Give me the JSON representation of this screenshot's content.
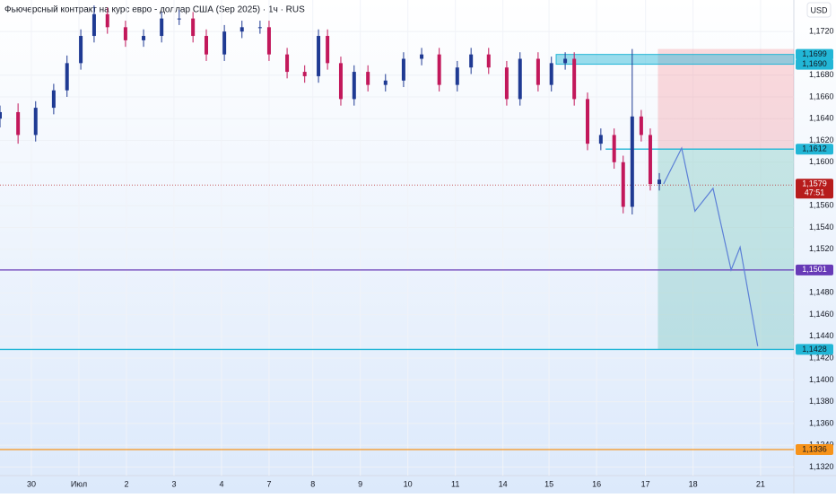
{
  "chart_data": {
    "type": "candlestick",
    "title": "Фьючерсный контракт на курс евро - доллар США (Sep 2025) · 1ч · RUS",
    "currency": "USD",
    "up_color": "#1f3a93",
    "down_color": "#c2185b",
    "grid": true,
    "xlim": [
      -0.66,
      16.04
    ],
    "ylim": [
      1.1308,
      1.1749
    ],
    "xticks": [
      {
        "value": 0,
        "label": "30"
      },
      {
        "value": 1,
        "label": "Июл"
      },
      {
        "value": 2,
        "label": "2"
      },
      {
        "value": 3,
        "label": "3"
      },
      {
        "value": 4,
        "label": "4"
      },
      {
        "value": 5,
        "label": "7"
      },
      {
        "value": 5.92,
        "label": "8"
      },
      {
        "value": 6.92,
        "label": "9"
      },
      {
        "value": 7.92,
        "label": "10"
      },
      {
        "value": 8.92,
        "label": "11"
      },
      {
        "value": 9.92,
        "label": "14"
      },
      {
        "value": 10.89,
        "label": "15"
      },
      {
        "value": 11.89,
        "label": "16"
      },
      {
        "value": 12.92,
        "label": "17"
      },
      {
        "value": 13.92,
        "label": "18"
      },
      {
        "value": 15.34,
        "label": "21"
      }
    ],
    "yticks": [
      {
        "value": 1.132,
        "label": "1,1320"
      },
      {
        "value": 1.134,
        "label": "1,1340"
      },
      {
        "value": 1.136,
        "label": "1,1360"
      },
      {
        "value": 1.138,
        "label": "1,1380"
      },
      {
        "value": 1.14,
        "label": "1,1400"
      },
      {
        "value": 1.142,
        "label": "1,1420"
      },
      {
        "value": 1.144,
        "label": "1,1440"
      },
      {
        "value": 1.146,
        "label": "1,1460"
      },
      {
        "value": 1.148,
        "label": "1,1480"
      },
      {
        "value": 1.152,
        "label": "1,1520"
      },
      {
        "value": 1.154,
        "label": "1,1540"
      },
      {
        "value": 1.156,
        "label": "1,1560"
      },
      {
        "value": 1.16,
        "label": "1,1600"
      },
      {
        "value": 1.162,
        "label": "1,1620"
      },
      {
        "value": 1.164,
        "label": "1,1640"
      },
      {
        "value": 1.166,
        "label": "1,1660"
      },
      {
        "value": 1.168,
        "label": "1,1680"
      },
      {
        "value": 1.172,
        "label": "1,1720"
      }
    ],
    "candles": {
      "x": [
        -0.66,
        -0.28,
        0.09,
        0.47,
        0.75,
        1.04,
        1.32,
        1.6,
        1.98,
        2.36,
        2.74,
        3.11,
        3.4,
        3.68,
        4.06,
        4.43,
        4.81,
        5.0,
        5.38,
        5.75,
        6.04,
        6.23,
        6.51,
        6.79,
        7.08,
        7.45,
        7.83,
        8.21,
        8.58,
        8.96,
        9.25,
        9.62,
        10.0,
        10.28,
        10.66,
        10.94,
        11.23,
        11.42,
        11.7,
        11.98,
        12.26,
        12.45,
        12.64,
        12.83,
        13.02,
        13.21
      ],
      "open": [
        1.164,
        1.1646,
        1.1625,
        1.165,
        1.1666,
        1.1691,
        1.1716,
        1.1736,
        1.1724,
        1.1712,
        1.1716,
        1.1732,
        1.1732,
        1.1716,
        1.1699,
        1.172,
        1.1724,
        1.1724,
        1.1699,
        1.1683,
        1.1679,
        1.1716,
        1.1691,
        1.1658,
        1.1683,
        1.1671,
        1.1675,
        1.1695,
        1.1699,
        1.1671,
        1.1687,
        1.1699,
        1.1687,
        1.1658,
        1.1695,
        1.1671,
        1.1691,
        1.1695,
        1.1658,
        1.1617,
        1.1625,
        1.16,
        1.1559,
        1.1642,
        1.1625,
        1.158
      ],
      "high": [
        1.1652,
        1.1654,
        1.1656,
        1.1672,
        1.1698,
        1.1722,
        1.1744,
        1.1742,
        1.173,
        1.1722,
        1.1738,
        1.174,
        1.1738,
        1.1722,
        1.1726,
        1.173,
        1.173,
        1.173,
        1.1705,
        1.1689,
        1.1722,
        1.1722,
        1.1697,
        1.1689,
        1.1689,
        1.1681,
        1.1701,
        1.1705,
        1.1705,
        1.1693,
        1.1705,
        1.1705,
        1.1693,
        1.1701,
        1.1701,
        1.1697,
        1.1701,
        1.1701,
        1.1664,
        1.1631,
        1.1631,
        1.1606,
        1.1704,
        1.1648,
        1.1631,
        1.159
      ],
      "low": [
        1.1632,
        1.1617,
        1.1619,
        1.1644,
        1.166,
        1.1685,
        1.171,
        1.1718,
        1.1706,
        1.1706,
        1.171,
        1.1726,
        1.171,
        1.1693,
        1.1693,
        1.1714,
        1.1718,
        1.1693,
        1.1677,
        1.1673,
        1.1673,
        1.1685,
        1.1652,
        1.1652,
        1.1665,
        1.1665,
        1.1669,
        1.1689,
        1.1665,
        1.1665,
        1.1681,
        1.1681,
        1.1652,
        1.1652,
        1.1665,
        1.1665,
        1.1685,
        1.1652,
        1.1611,
        1.1611,
        1.1594,
        1.1553,
        1.1552,
        1.1619,
        1.1574,
        1.1574
      ],
      "close": [
        1.1646,
        1.1625,
        1.165,
        1.1666,
        1.1691,
        1.1716,
        1.1736,
        1.1724,
        1.1712,
        1.1716,
        1.1732,
        1.1732,
        1.1716,
        1.1699,
        1.172,
        1.1724,
        1.1724,
        1.1699,
        1.1683,
        1.1679,
        1.1716,
        1.1691,
        1.1658,
        1.1683,
        1.1671,
        1.1675,
        1.1695,
        1.1699,
        1.1671,
        1.1687,
        1.1699,
        1.1687,
        1.1658,
        1.1695,
        1.1671,
        1.1691,
        1.1695,
        1.1658,
        1.1617,
        1.1625,
        1.16,
        1.1559,
        1.1642,
        1.1625,
        1.158,
        1.1584
      ]
    },
    "forecast": {
      "color": "#5b7fd6",
      "x": [
        13.3,
        13.68,
        13.96,
        14.34,
        14.72,
        14.91,
        15.28
      ],
      "values": [
        1.158,
        1.1613,
        1.1555,
        1.1576,
        1.1501,
        1.1522,
        1.1431
      ]
    },
    "position": {
      "entry": 1.1612,
      "stop": 1.1704,
      "target": 1.1428,
      "x_start": 13.18,
      "stop_color": "rgba(242,54,69,0.18)",
      "target_color": "rgba(8,153,129,0.2)"
    },
    "zone": {
      "x_start": 11.04,
      "color": "#22b6d6",
      "top": {
        "value": 1.1699,
        "label": "1,1699"
      },
      "bottom": {
        "value": 1.169,
        "label": "1,1690"
      }
    },
    "levels": [
      {
        "value": 1.1612,
        "label": "1,1612",
        "color": "#22b6d6",
        "x_start": 12.08
      },
      {
        "value": 1.1501,
        "label": "1,1501",
        "color": "#673ab7"
      },
      {
        "value": 1.1428,
        "label": "1,1428",
        "color": "#22b6d6"
      },
      {
        "value": 1.1336,
        "label": "1,1336",
        "color": "#f7931a"
      }
    ],
    "current": {
      "value": 1.1579,
      "label": "1,1579",
      "countdown": "47:51",
      "color": "#b71c1c"
    }
  }
}
